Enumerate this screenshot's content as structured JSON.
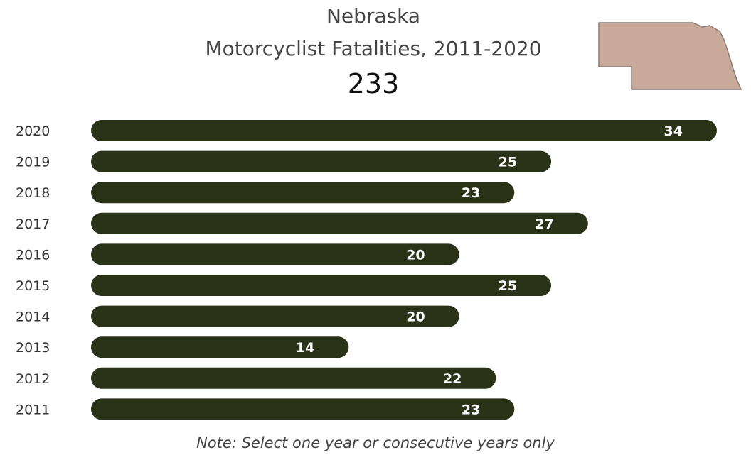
{
  "header": {
    "state": "Nebraska",
    "title": "Motorcyclist Fatalities, 2011-2020",
    "total": "233"
  },
  "map": {
    "icon": "nebraska-state-map",
    "fill": "#c8a99a",
    "stroke": "#8a7a72"
  },
  "note": "Note: Select one year or consecutive years only",
  "colors": {
    "bar": "#2a3318",
    "value_label": "#ffffff",
    "year_label": "#333333"
  },
  "chart_data": {
    "type": "bar",
    "orientation": "horizontal",
    "categories": [
      "2020",
      "2019",
      "2018",
      "2017",
      "2016",
      "2015",
      "2014",
      "2013",
      "2012",
      "2011"
    ],
    "values": [
      34,
      25,
      23,
      27,
      20,
      25,
      20,
      14,
      22,
      23
    ],
    "xlim": [
      0,
      34
    ],
    "grid": false,
    "data_labels": true
  }
}
